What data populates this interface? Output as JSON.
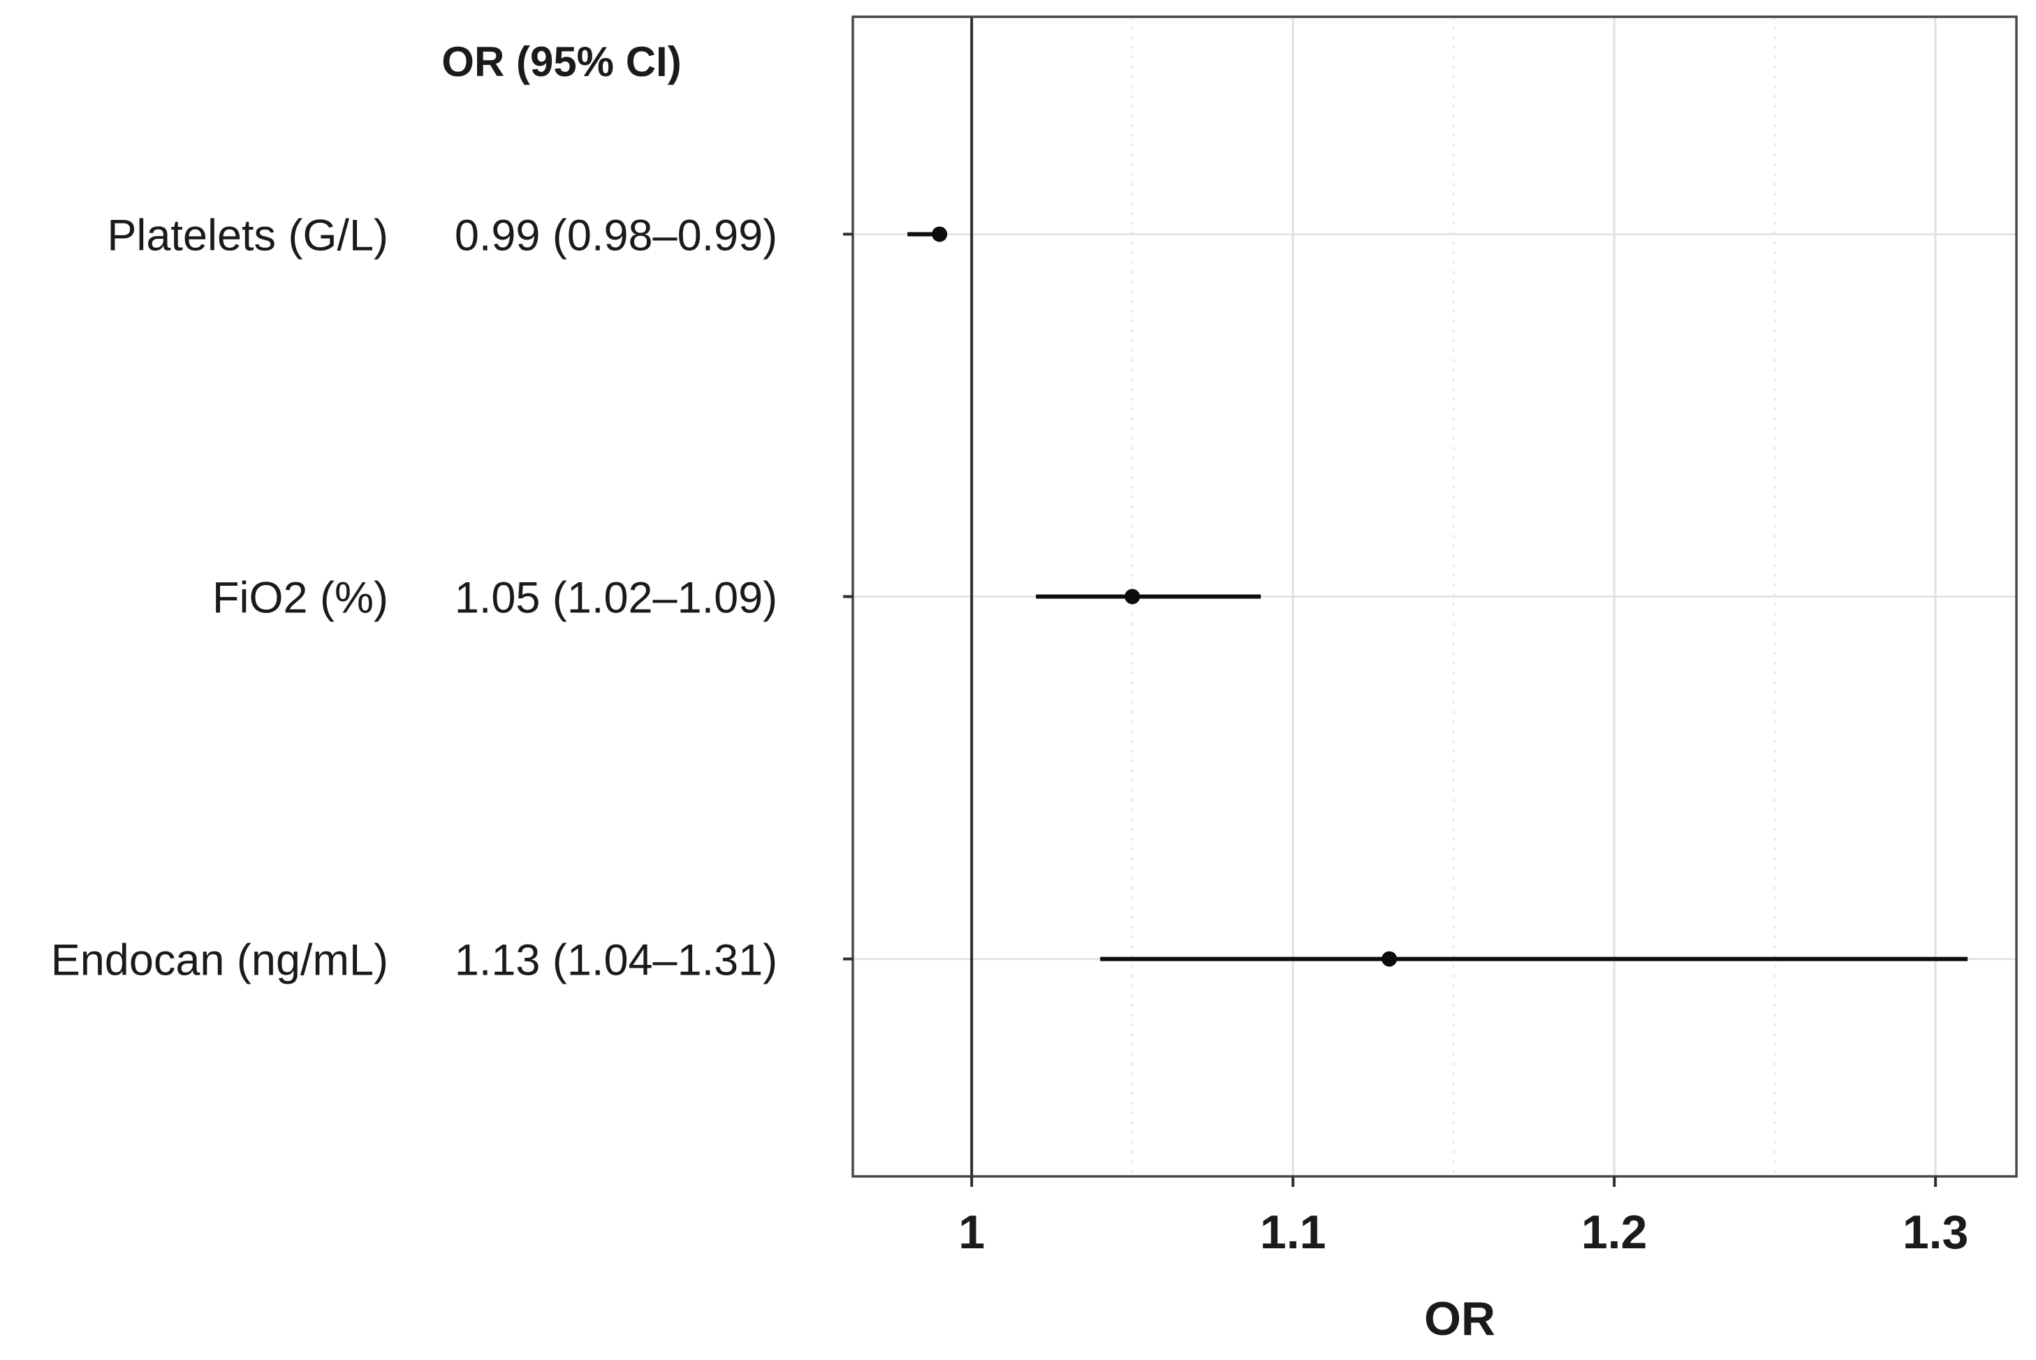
{
  "chart_data": {
    "type": "forest",
    "column_header": "OR (95% CI)",
    "xlabel": "OR",
    "reference_line": 1,
    "x_range": [
      0.963,
      1.3252
    ],
    "x_ticks": [
      1,
      1.1,
      1.2,
      1.3
    ],
    "x_tick_labels": [
      "1",
      "1.1",
      "1.2",
      "1.3"
    ],
    "x_minor_gridlines": [
      1.05,
      1.15,
      1.25
    ],
    "grid": "on",
    "legend_position": "none",
    "rows": [
      {
        "label": "Platelets (G/L)",
        "estimate_text": "0.99 (0.98–0.99)",
        "or": 0.99,
        "ci_low": 0.98,
        "ci_high": 0.99
      },
      {
        "label": "FiO2 (%)",
        "estimate_text": "1.05 (1.02–1.09)",
        "or": 1.05,
        "ci_low": 1.02,
        "ci_high": 1.09
      },
      {
        "label": "Endocan (ng/mL)",
        "estimate_text": "1.13 (1.04–1.31)",
        "or": 1.13,
        "ci_low": 1.04,
        "ci_high": 1.31
      }
    ],
    "colors": {
      "background": "#ffffff",
      "text": "#1a1a1a",
      "plot_border": "#474747",
      "reference_line": "#2e2e2e",
      "major_gridline": "#e0e0e0",
      "minor_gridline": "#e9e9e9",
      "row_gridline": "#e4e4e4",
      "axis_tick": "#2e2e2e",
      "point": "#0c0c0c",
      "ci_line": "#0c0c0c"
    }
  }
}
